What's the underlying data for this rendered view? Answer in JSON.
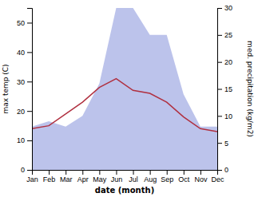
{
  "chart_data": {
    "type": "line",
    "categories": [
      "Jan",
      "Feb",
      "Mar",
      "Apr",
      "May",
      "Jun",
      "Jul",
      "Aug",
      "Sep",
      "Oct",
      "Nov",
      "Dec"
    ],
    "xlabel": "date (month)",
    "ylabel": "max temp (C)",
    "y2label": "med. precipitation (kg/m2)",
    "series": [
      {
        "type": "area",
        "axis": "y2",
        "color": "#b0b8e8",
        "values": [
          8,
          9,
          8,
          10,
          16,
          30,
          30,
          25,
          25,
          14,
          8,
          8
        ]
      },
      {
        "type": "line",
        "color": "#b03040",
        "values": [
          14,
          15,
          19,
          23,
          28,
          31,
          27,
          26,
          23,
          18,
          14,
          13
        ]
      }
    ],
    "ylim": [
      0,
      55
    ],
    "yticks": [
      0,
      10,
      20,
      30,
      40,
      50
    ],
    "y2lim": [
      0,
      30
    ],
    "y2ticks": [
      0,
      5,
      10,
      15,
      20,
      25,
      30
    ]
  }
}
